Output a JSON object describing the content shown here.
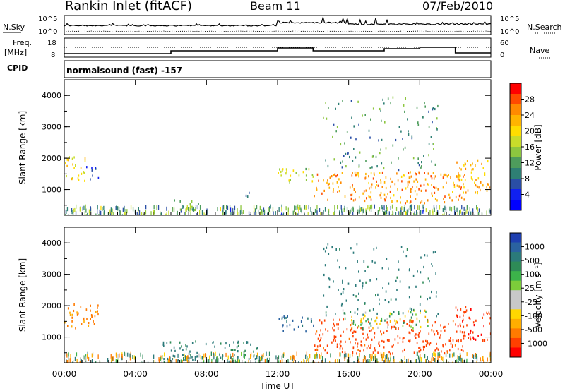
{
  "header": {
    "station": "Rankin Inlet (fitACF)",
    "beam": "Beam 11",
    "date": "07/Feb/2010",
    "program": "normalsound (fast) -157"
  },
  "strip_labels": {
    "nsky": "N.Sky",
    "freq": "Freq.",
    "freq_unit": "[MHz]",
    "cpid": "CPID",
    "nsearch": "N.Search",
    "nave": "Nave",
    "noise_ticks_left": [
      "10^5",
      "10^0"
    ],
    "noise_ticks_right": [
      "10^5",
      "10^0"
    ],
    "freq_ticks": [
      "18",
      "8"
    ],
    "nave_ticks": [
      "60",
      "0"
    ]
  },
  "colorbars": {
    "power": {
      "label": "Power [dB]",
      "ticks": [
        "28",
        "24",
        "20",
        "16",
        "12",
        "8",
        "4"
      ],
      "colors": [
        "#ff0000",
        "#ff4a00",
        "#ff8a00",
        "#ffb400",
        "#ffdd00",
        "#c8dc2a",
        "#8dc63f",
        "#4e9c5c",
        "#2e7f74",
        "#2a4ea6",
        "#1020f0",
        "#0000ff"
      ]
    },
    "velocity": {
      "label": "Velocity [m s⁻¹]",
      "ticks": [
        "1000",
        "500",
        "100",
        "25",
        "-25",
        "-100",
        "-500",
        "-1000"
      ],
      "colors": [
        "#1e3fb0",
        "#2a62a0",
        "#2b7a7a",
        "#2e8b57",
        "#3cb34a",
        "#7ccc3a",
        "#c8c8c8",
        "#c8c8c8",
        "#ffd800",
        "#ffae00",
        "#ff7a00",
        "#ff4000",
        "#ff0000"
      ]
    }
  },
  "axes": {
    "ylabel": "Slant Range [km]",
    "xlabel": "Time UT",
    "xticks": [
      "00:00",
      "04:00",
      "08:00",
      "12:00",
      "16:00",
      "20:00",
      "00:00"
    ],
    "yticks": [
      "1000",
      "2000",
      "3000",
      "4000"
    ]
  },
  "chart_data": [
    {
      "type": "heatmap",
      "title": "Power",
      "xlabel": "Time UT",
      "ylabel": "Slant Range [km]",
      "xlim_hours": [
        0,
        24
      ],
      "ylim_km": [
        180,
        4500
      ],
      "colorbar_label": "Power [dB]",
      "colorbar_ticks": [
        4,
        8,
        12,
        16,
        20,
        24,
        28
      ],
      "regions": [
        {
          "t0": 0.0,
          "t1": 1.2,
          "r0": 1300,
          "r1": 2100,
          "value": 20
        },
        {
          "t0": 1.2,
          "t1": 1.9,
          "r0": 1350,
          "r1": 1800,
          "value": 8
        },
        {
          "t0": 5.9,
          "t1": 7.6,
          "r0": 350,
          "r1": 700,
          "value": 12
        },
        {
          "t0": 9.8,
          "t1": 10.6,
          "r0": 800,
          "r1": 950,
          "value": 8
        },
        {
          "t0": 12.0,
          "t1": 14.0,
          "r0": 1200,
          "r1": 1700,
          "value": 18
        },
        {
          "t0": 14.0,
          "t1": 22.5,
          "r0": 600,
          "r1": 1600,
          "value": 26
        },
        {
          "t0": 14.5,
          "t1": 21.0,
          "r0": 1600,
          "r1": 4000,
          "value": 12
        },
        {
          "t0": 22.0,
          "t1": 24.0,
          "r0": 900,
          "r1": 2000,
          "value": 24
        }
      ]
    },
    {
      "type": "heatmap",
      "title": "Velocity",
      "xlabel": "Time UT",
      "ylabel": "Slant Range [km]",
      "xlim_hours": [
        0,
        24
      ],
      "ylim_km": [
        180,
        4500
      ],
      "colorbar_label": "Velocity [m s⁻¹]",
      "colorbar_ticks": [
        -1000,
        -500,
        -100,
        -25,
        25,
        100,
        500,
        1000
      ],
      "regions": [
        {
          "t0": 0.0,
          "t1": 1.9,
          "r0": 1300,
          "r1": 2100,
          "value": -100
        },
        {
          "t0": 5.5,
          "t1": 11.0,
          "r0": 300,
          "r1": 900,
          "value": 100
        },
        {
          "t0": 12.0,
          "t1": 14.0,
          "r0": 1200,
          "r1": 1700,
          "value": 200
        },
        {
          "t0": 14.0,
          "t1": 22.5,
          "r0": 500,
          "r1": 1600,
          "value": -300
        },
        {
          "t0": 15.5,
          "t1": 20.5,
          "r0": 1300,
          "r1": 1900,
          "value": 0
        },
        {
          "t0": 14.5,
          "t1": 21.0,
          "r0": 1700,
          "r1": 4000,
          "value": 100
        },
        {
          "t0": 22.0,
          "t1": 24.0,
          "r0": 900,
          "r1": 2000,
          "value": -500
        }
      ]
    }
  ]
}
